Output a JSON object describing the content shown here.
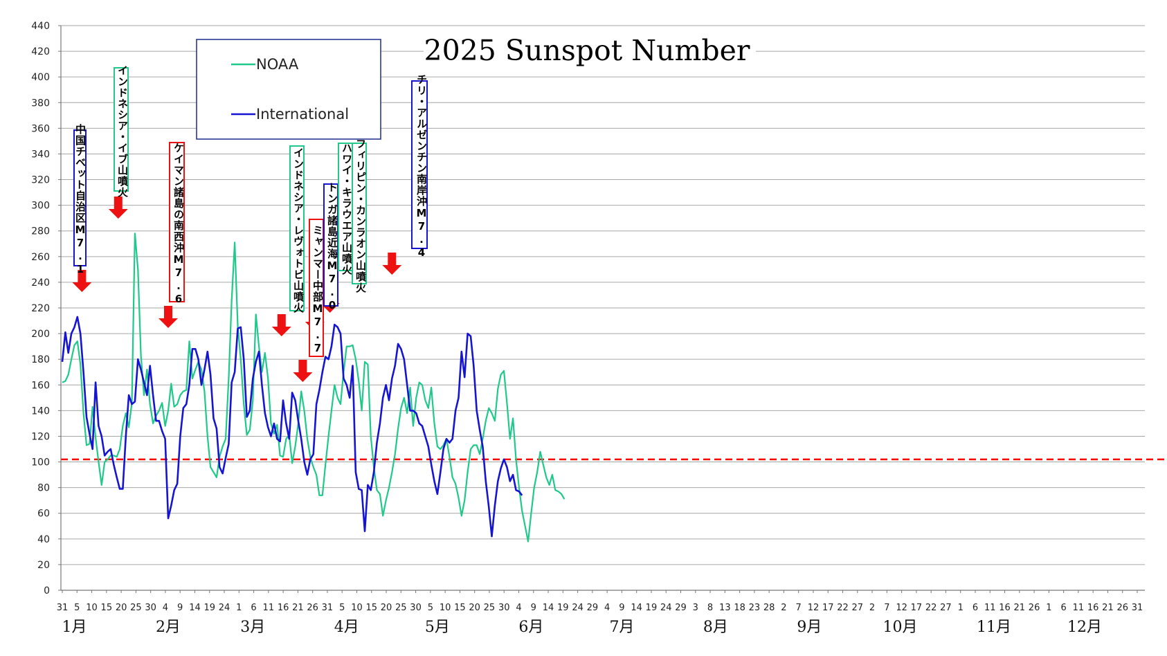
{
  "chart_data": {
    "type": "line",
    "title": "2025 Sunspot Number",
    "ylim": [
      0,
      440
    ],
    "yticks": [
      0,
      20,
      40,
      60,
      80,
      100,
      120,
      140,
      160,
      180,
      200,
      220,
      240,
      260,
      280,
      300,
      320,
      340,
      360,
      380,
      400,
      420,
      440
    ],
    "xticks": [
      "31",
      "5",
      "10",
      "15",
      "20",
      "25",
      "30",
      "4",
      "9",
      "14",
      "19",
      "24",
      "1",
      "6",
      "11",
      "16",
      "21",
      "26",
      "31",
      "5",
      "10",
      "15",
      "20",
      "25",
      "30",
      "5",
      "10",
      "15",
      "20",
      "25",
      "30",
      "4",
      "9",
      "14",
      "19",
      "24",
      "29",
      "4",
      "9",
      "14",
      "19",
      "24",
      "29",
      "3",
      "8",
      "13",
      "18",
      "23",
      "28",
      "2",
      "7",
      "12",
      "17",
      "22",
      "27",
      "2",
      "7",
      "12",
      "17",
      "22",
      "27",
      "1",
      "6",
      "11",
      "16",
      "21",
      "26",
      "1",
      "6",
      "11",
      "16",
      "21",
      "26",
      "31"
    ],
    "month_labels": [
      "1月",
      "2月",
      "3月",
      "4月",
      "5月",
      "6月",
      "7月",
      "8月",
      "9月",
      "10月",
      "11月",
      "12月"
    ],
    "grid": true,
    "legend_position": "top-left",
    "reference_line": {
      "y": 102,
      "color": "#ff0000",
      "style": "dashed"
    },
    "colors": {
      "NOAA": "#1ec98a",
      "International": "#1414d2",
      "arrow": "#ee1111"
    },
    "series": [
      {
        "name": "NOAA",
        "values": [
          162,
          163,
          168,
          180,
          191,
          194,
          176,
          138,
          113,
          114,
          143,
          119,
          100,
          82,
          100,
          102,
          105,
          105,
          104,
          110,
          128,
          138,
          127,
          146,
          278,
          250,
          183,
          152,
          172,
          145,
          130,
          136,
          140,
          146,
          128,
          140,
          161,
          143,
          145,
          152,
          155,
          156,
          194,
          165,
          172,
          178,
          172,
          155,
          120,
          96,
          92,
          88,
          104,
          112,
          118,
          165,
          226,
          271,
          206,
          180,
          145,
          121,
          125,
          148,
          215,
          190,
          170,
          185,
          165,
          130,
          122,
          129,
          105,
          104,
          118,
          121,
          99,
          112,
          130,
          155,
          140,
          118,
          104,
          96,
          90,
          74,
          74,
          98,
          120,
          140,
          160,
          150,
          145,
          170,
          190,
          190,
          191,
          180,
          163,
          140,
          178,
          176,
          120,
          96,
          78,
          75,
          58,
          70,
          80,
          92,
          106,
          126,
          142,
          150,
          138,
          158,
          128,
          150,
          162,
          160,
          148,
          142,
          158,
          130,
          112,
          110,
          113,
          118,
          104,
          88,
          83,
          72,
          58,
          70,
          92,
          110,
          113,
          113,
          106,
          118,
          132,
          142,
          138,
          132,
          157,
          168,
          171,
          146,
          118,
          134,
          102,
          80,
          62,
          50,
          38,
          60,
          80,
          92,
          108,
          98,
          88,
          82,
          90,
          78,
          77,
          75,
          71
        ],
        "unit": "daily"
      },
      {
        "name": "International",
        "values": [
          178,
          201,
          185,
          200,
          205,
          213,
          200,
          170,
          135,
          122,
          110,
          162,
          128,
          120,
          105,
          108,
          110,
          98,
          88,
          79,
          79,
          120,
          152,
          145,
          147,
          180,
          172,
          162,
          152,
          175,
          152,
          132,
          132,
          124,
          118,
          56,
          66,
          78,
          83,
          120,
          142,
          145,
          160,
          188,
          188,
          180,
          160,
          172,
          186,
          168,
          134,
          126,
          96,
          91,
          103,
          114,
          162,
          170,
          204,
          205,
          180,
          135,
          140,
          165,
          178,
          186,
          160,
          138,
          127,
          120,
          130,
          118,
          116,
          148,
          130,
          118,
          154,
          148,
          132,
          118,
          100,
          90,
          102,
          106,
          145,
          156,
          170,
          182,
          180,
          190,
          207,
          205,
          200,
          165,
          160,
          150,
          175,
          92,
          79,
          78,
          46,
          82,
          78,
          92,
          115,
          130,
          150,
          160,
          148,
          165,
          175,
          192,
          188,
          180,
          160,
          140,
          140,
          138,
          130,
          128,
          120,
          112,
          98,
          85,
          75,
          92,
          110,
          118,
          115,
          118,
          140,
          150,
          186,
          166,
          200,
          198,
          175,
          140,
          125,
          112,
          85,
          65,
          42,
          66,
          85,
          95,
          102,
          96,
          85,
          90,
          78,
          77,
          74
        ],
        "unit": "daily"
      }
    ]
  },
  "annotations": [
    {
      "text": "中国チベット自治区M7.1",
      "border": "#1414d2"
    },
    {
      "text": "インドネシア・イブ山噴火",
      "border": "#1ec98a"
    },
    {
      "text": "ケイマン諸島の南西沖M7.6",
      "border": "#ee1111"
    },
    {
      "text": "インドネシア・レヴォトビ山噴火",
      "border": "#1ec98a"
    },
    {
      "text": "ミャンマー中部M7.7",
      "border": "#ee1111"
    },
    {
      "text": "トンガ諸島近海M7.0",
      "border": "#1414d2"
    },
    {
      "text": "ハワイ・キラウエア山噴火",
      "border": "#1ec98a"
    },
    {
      "text": "フィリピン・カンラオン山噴火",
      "border": "#1ec98a"
    },
    {
      "text": "チリ・アルゼンチン南岸沖M7.4",
      "border": "#1414d2"
    }
  ]
}
